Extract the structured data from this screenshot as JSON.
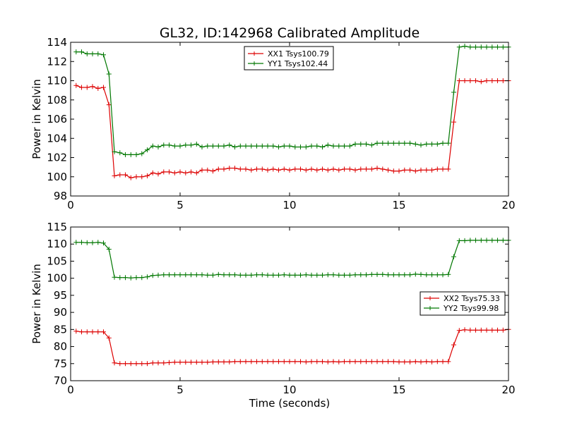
{
  "figure": {
    "title": "GL32, ID:142968 Calibrated Amplitude"
  },
  "chart_data": [
    {
      "type": "line",
      "title": "GL32, ID:142968 Calibrated Amplitude",
      "xlabel": "",
      "ylabel": "Power in Kelvin",
      "xlim": [
        0,
        20
      ],
      "ylim": [
        98,
        114
      ],
      "xticks": [
        0,
        5,
        10,
        15,
        20
      ],
      "yticks": [
        98,
        100,
        102,
        104,
        106,
        108,
        110,
        112,
        114
      ],
      "legend_position": "upper-center",
      "x": [
        0.25,
        0.5,
        0.75,
        1.0,
        1.25,
        1.5,
        1.75,
        2.0,
        2.25,
        2.5,
        2.75,
        3.0,
        3.25,
        3.5,
        3.75,
        4.0,
        4.25,
        4.5,
        4.75,
        5.0,
        5.25,
        5.5,
        5.75,
        6.0,
        6.25,
        6.5,
        6.75,
        7.0,
        7.25,
        7.5,
        7.75,
        8.0,
        8.25,
        8.5,
        8.75,
        9.0,
        9.25,
        9.5,
        9.75,
        10.0,
        10.25,
        10.5,
        10.75,
        11.0,
        11.25,
        11.5,
        11.75,
        12.0,
        12.25,
        12.5,
        12.75,
        13.0,
        13.25,
        13.5,
        13.75,
        14.0,
        14.25,
        14.5,
        14.75,
        15.0,
        15.25,
        15.5,
        15.75,
        16.0,
        16.25,
        16.5,
        16.75,
        17.0,
        17.25,
        17.5,
        17.75,
        18.0,
        18.25,
        18.5,
        18.75,
        19.0,
        19.25,
        19.5,
        19.75,
        20.0
      ],
      "series": [
        {
          "name": "XX1 Tsys100.79",
          "color": "#dd0000",
          "values": [
            109.5,
            109.3,
            109.3,
            109.4,
            109.2,
            109.3,
            107.5,
            100.1,
            100.2,
            100.2,
            99.9,
            100.0,
            100.0,
            100.1,
            100.4,
            100.3,
            100.5,
            100.5,
            100.4,
            100.5,
            100.4,
            100.5,
            100.4,
            100.7,
            100.7,
            100.6,
            100.8,
            100.8,
            100.9,
            100.9,
            100.8,
            100.8,
            100.7,
            100.8,
            100.8,
            100.7,
            100.8,
            100.7,
            100.8,
            100.7,
            100.8,
            100.8,
            100.7,
            100.8,
            100.7,
            100.8,
            100.7,
            100.8,
            100.7,
            100.8,
            100.8,
            100.7,
            100.8,
            100.8,
            100.8,
            100.9,
            100.8,
            100.7,
            100.6,
            100.6,
            100.7,
            100.7,
            100.6,
            100.7,
            100.7,
            100.7,
            100.8,
            100.8,
            100.8,
            105.7,
            110.0,
            110.0,
            110.0,
            110.0,
            109.9,
            110.0,
            110.0,
            110.0,
            110.0,
            110.0
          ],
          "x_override": [
            0.25,
            0.5,
            0.75,
            1.0,
            1.25,
            1.5,
            1.75,
            2.0,
            2.25,
            2.5,
            2.75,
            3.0,
            3.25,
            3.5,
            3.75,
            4.0,
            4.25,
            4.5,
            4.75,
            5.0,
            5.25,
            5.5,
            5.75,
            6.0,
            6.25,
            6.5,
            6.75,
            7.0,
            7.25,
            7.5,
            7.75,
            8.0,
            8.25,
            8.5,
            8.75,
            9.0,
            9.25,
            9.5,
            9.75,
            10.0,
            10.25,
            10.5,
            10.75,
            11.0,
            11.25,
            11.5,
            11.75,
            12.0,
            12.25,
            12.5,
            12.75,
            13.0,
            13.25,
            13.5,
            13.75,
            14.0,
            14.25,
            14.5,
            14.75,
            15.0,
            15.25,
            15.5,
            15.75,
            16.0,
            16.25,
            16.5,
            16.75,
            17.0,
            17.25,
            17.5,
            17.75,
            18.0,
            18.25,
            18.5,
            18.75,
            19.0,
            19.25,
            19.5,
            19.75,
            20.0
          ]
        },
        {
          "name": "YY1 Tsys102.44",
          "color": "#007700",
          "values": [
            113.0,
            113.0,
            112.8,
            112.8,
            112.8,
            112.7,
            110.7,
            102.6,
            102.5,
            102.3,
            102.3,
            102.3,
            102.4,
            102.8,
            103.2,
            103.1,
            103.3,
            103.3,
            103.2,
            103.2,
            103.3,
            103.3,
            103.4,
            103.1,
            103.2,
            103.2,
            103.2,
            103.2,
            103.3,
            103.1,
            103.2,
            103.2,
            103.2,
            103.2,
            103.2,
            103.2,
            103.2,
            103.1,
            103.2,
            103.2,
            103.1,
            103.1,
            103.1,
            103.2,
            103.2,
            103.1,
            103.3,
            103.2,
            103.2,
            103.2,
            103.2,
            103.4,
            103.4,
            103.4,
            103.3,
            103.5,
            103.5,
            103.5,
            103.5,
            103.5,
            103.5,
            103.5,
            103.4,
            103.3,
            103.4,
            103.4,
            103.4,
            103.5,
            103.5,
            108.8,
            113.5,
            113.6,
            113.5,
            113.5,
            113.5,
            113.5,
            113.5,
            113.5,
            113.5,
            113.5
          ]
        }
      ]
    },
    {
      "type": "line",
      "title": "",
      "xlabel": "Time (seconds)",
      "ylabel": "Power in Kelvin",
      "xlim": [
        0,
        20
      ],
      "ylim": [
        70,
        115
      ],
      "xticks": [
        0,
        5,
        10,
        15,
        20
      ],
      "yticks": [
        70,
        75,
        80,
        85,
        90,
        95,
        100,
        105,
        110,
        115
      ],
      "legend_position": "center-right",
      "x": [
        0.25,
        0.5,
        0.75,
        1.0,
        1.25,
        1.5,
        1.75,
        2.0,
        2.25,
        2.5,
        2.75,
        3.0,
        3.25,
        3.5,
        3.75,
        4.0,
        4.25,
        4.5,
        4.75,
        5.0,
        5.25,
        5.5,
        5.75,
        6.0,
        6.25,
        6.5,
        6.75,
        7.0,
        7.25,
        7.5,
        7.75,
        8.0,
        8.25,
        8.5,
        8.75,
        9.0,
        9.25,
        9.5,
        9.75,
        10.0,
        10.25,
        10.5,
        10.75,
        11.0,
        11.25,
        11.5,
        11.75,
        12.0,
        12.25,
        12.5,
        12.75,
        13.0,
        13.25,
        13.5,
        13.75,
        14.0,
        14.25,
        14.5,
        14.75,
        15.0,
        15.25,
        15.5,
        15.75,
        16.0,
        16.25,
        16.5,
        16.75,
        17.0,
        17.25,
        17.5,
        17.75,
        18.0,
        18.25,
        18.5,
        18.75,
        19.0,
        19.25,
        19.5,
        19.75,
        20.0
      ],
      "series": [
        {
          "name": "XX2 Tsys75.33",
          "color": "#dd0000",
          "values": [
            84.5,
            84.3,
            84.3,
            84.3,
            84.3,
            84.3,
            82.5,
            75.2,
            75.0,
            75.0,
            75.0,
            75.0,
            75.0,
            75.0,
            75.2,
            75.2,
            75.2,
            75.3,
            75.4,
            75.4,
            75.4,
            75.4,
            75.4,
            75.4,
            75.4,
            75.5,
            75.5,
            75.5,
            75.5,
            75.6,
            75.6,
            75.6,
            75.6,
            75.6,
            75.6,
            75.6,
            75.6,
            75.6,
            75.6,
            75.6,
            75.6,
            75.6,
            75.5,
            75.6,
            75.6,
            75.6,
            75.5,
            75.6,
            75.5,
            75.6,
            75.6,
            75.6,
            75.6,
            75.6,
            75.6,
            75.6,
            75.6,
            75.6,
            75.6,
            75.5,
            75.5,
            75.5,
            75.6,
            75.5,
            75.6,
            75.5,
            75.6,
            75.6,
            75.6,
            80.5,
            84.7,
            84.9,
            84.8,
            84.8,
            84.8,
            84.8,
            84.8,
            84.8,
            84.8,
            85.0
          ]
        },
        {
          "name": "YY2 Tsys99.98",
          "color": "#007700",
          "values": [
            110.5,
            110.5,
            110.4,
            110.4,
            110.5,
            110.3,
            108.5,
            100.3,
            100.2,
            100.2,
            100.1,
            100.2,
            100.2,
            100.4,
            100.8,
            100.9,
            101.0,
            101.0,
            101.0,
            101.0,
            101.0,
            101.0,
            101.0,
            101.0,
            100.9,
            100.9,
            101.1,
            101.0,
            101.0,
            101.0,
            100.9,
            100.9,
            100.9,
            101.0,
            101.0,
            100.9,
            100.9,
            100.9,
            101.0,
            100.9,
            100.9,
            100.9,
            101.0,
            100.9,
            100.9,
            100.9,
            101.0,
            101.0,
            100.9,
            100.9,
            100.9,
            101.0,
            101.0,
            101.0,
            101.1,
            101.1,
            101.1,
            101.0,
            101.0,
            101.0,
            101.0,
            101.0,
            101.2,
            101.1,
            101.0,
            101.0,
            101.0,
            101.0,
            101.1,
            106.3,
            111.0,
            111.0,
            111.1,
            111.1,
            111.1,
            111.1,
            111.1,
            111.1,
            111.1,
            111.1
          ]
        }
      ]
    }
  ]
}
